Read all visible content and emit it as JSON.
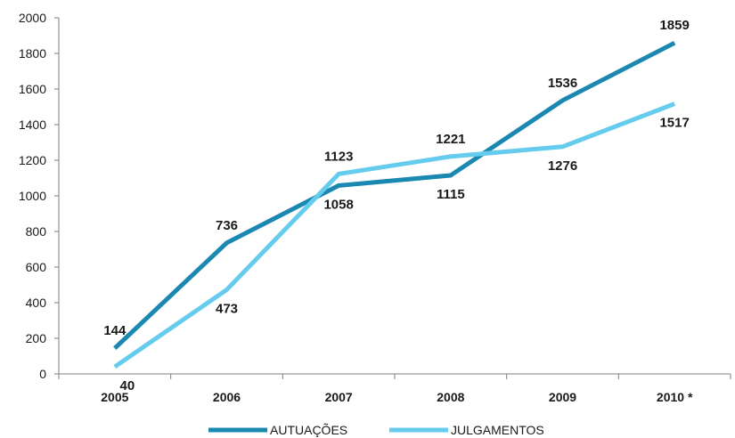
{
  "chart_data": {
    "type": "line",
    "title": "",
    "xlabel": "",
    "ylabel": "",
    "categories": [
      "2005",
      "2006",
      "2007",
      "2008",
      "2009",
      "2010 *"
    ],
    "ylim": [
      0,
      2000
    ],
    "yticks": [
      0,
      200,
      400,
      600,
      800,
      1000,
      1200,
      1400,
      1600,
      1800,
      2000
    ],
    "grid": false,
    "legend_position": "bottom",
    "series": [
      {
        "name": "AUTUAÇÕES",
        "color": "#1a88b0",
        "values": [
          144,
          736,
          1058,
          1115,
          1536,
          1859
        ]
      },
      {
        "name": "JULGAMENTOS",
        "color": "#66ccee",
        "values": [
          40,
          473,
          1123,
          1221,
          1276,
          1517
        ]
      }
    ]
  }
}
